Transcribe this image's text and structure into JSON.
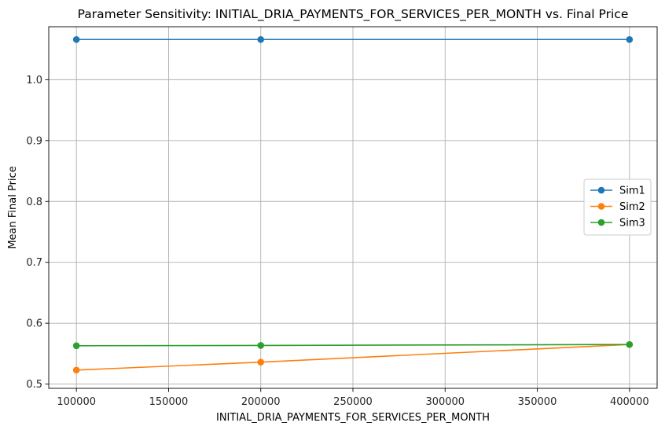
{
  "chart_data": {
    "type": "line",
    "title": "Parameter Sensitivity: INITIAL_DRIA_PAYMENTS_FOR_SERVICES_PER_MONTH vs. Final Price",
    "xlabel": "INITIAL_DRIA_PAYMENTS_FOR_SERVICES_PER_MONTH",
    "ylabel": "Mean Final Price",
    "x": [
      100000,
      200000,
      400000
    ],
    "xlim": [
      85000,
      415000
    ],
    "ylim": [
      0.493,
      1.087
    ],
    "xticks": [
      100000,
      150000,
      200000,
      250000,
      300000,
      350000,
      400000
    ],
    "xtick_labels": [
      "100000",
      "150000",
      "200000",
      "250000",
      "300000",
      "350000",
      "400000"
    ],
    "yticks": [
      0.5,
      0.6,
      0.7,
      0.8,
      0.9,
      1.0
    ],
    "ytick_labels": [
      "0.5",
      "0.6",
      "0.7",
      "0.8",
      "0.9",
      "1.0"
    ],
    "grid": true,
    "legend_position": "center-right",
    "series": [
      {
        "name": "Sim1",
        "color": "#1f77b4",
        "values": [
          1.066,
          1.066,
          1.066
        ]
      },
      {
        "name": "Sim2",
        "color": "#ff7f0e",
        "values": [
          0.523,
          0.536,
          0.565
        ]
      },
      {
        "name": "Sim3",
        "color": "#2ca02c",
        "values": [
          0.563,
          0.5635,
          0.565
        ]
      }
    ]
  }
}
